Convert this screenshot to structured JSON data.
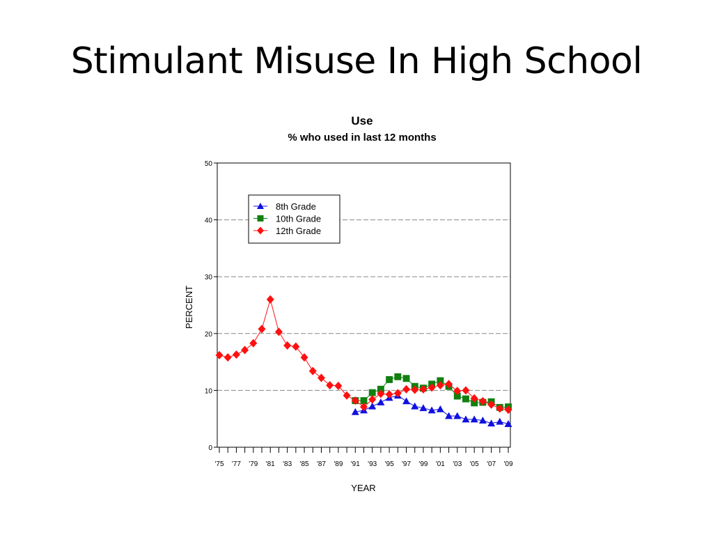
{
  "slide": {
    "title": "Stimulant Misuse In High School"
  },
  "chart_data": {
    "type": "line",
    "title": "Use",
    "subtitle": "% who used in last 12 months",
    "xlabel": "YEAR",
    "ylabel": "PERCENT",
    "ylim": [
      0,
      50
    ],
    "yticks": [
      0,
      10,
      20,
      30,
      40,
      50
    ],
    "xlim": [
      1975,
      2009
    ],
    "x_tick_labels": [
      "'75",
      "'77",
      "'79",
      "'81",
      "'83",
      "'85",
      "'87",
      "'89",
      "'91",
      "'93",
      "'95",
      "'97",
      "'99",
      "'01",
      "'03",
      "'05",
      "'07",
      "'09"
    ],
    "grid": "horizontal dashed",
    "legend_position": "top-left",
    "series": [
      {
        "name": "8th Grade",
        "color": "#1010e0",
        "marker": "triangle",
        "x": [
          1991,
          1992,
          1993,
          1994,
          1995,
          1996,
          1997,
          1998,
          1999,
          2000,
          2001,
          2002,
          2003,
          2004,
          2005,
          2006,
          2007,
          2008,
          2009
        ],
        "values": [
          6.2,
          6.5,
          7.2,
          7.9,
          8.7,
          9.1,
          8.1,
          7.2,
          6.9,
          6.5,
          6.7,
          5.5,
          5.5,
          4.9,
          4.9,
          4.7,
          4.2,
          4.5,
          4.1
        ]
      },
      {
        "name": "10th Grade",
        "color": "#108010",
        "marker": "square",
        "x": [
          1991,
          1992,
          1993,
          1994,
          1995,
          1996,
          1997,
          1998,
          1999,
          2000,
          2001,
          2002,
          2003,
          2004,
          2005,
          2006,
          2007,
          2008,
          2009
        ],
        "values": [
          8.2,
          8.2,
          9.6,
          10.2,
          11.9,
          12.4,
          12.1,
          10.7,
          10.4,
          11.1,
          11.7,
          10.7,
          9.0,
          8.5,
          7.8,
          7.9,
          8.0,
          7.0,
          7.1
        ]
      },
      {
        "name": "12th Grade",
        "color": "#ff1010",
        "marker": "diamond",
        "x": [
          1975,
          1976,
          1977,
          1978,
          1979,
          1980,
          1981,
          1982,
          1983,
          1984,
          1985,
          1986,
          1987,
          1988,
          1989,
          1990,
          1991,
          1992,
          1993,
          1994,
          1995,
          1996,
          1997,
          1998,
          1999,
          2000,
          2001,
          2002,
          2003,
          2004,
          2005,
          2006,
          2007,
          2008,
          2009
        ],
        "values": [
          16.2,
          15.8,
          16.3,
          17.1,
          18.3,
          20.8,
          26.0,
          20.3,
          17.9,
          17.7,
          15.8,
          13.4,
          12.2,
          10.9,
          10.8,
          9.1,
          8.2,
          7.1,
          8.4,
          9.4,
          9.3,
          9.5,
          10.2,
          10.1,
          10.2,
          10.5,
          10.9,
          11.1,
          9.9,
          10.0,
          8.6,
          8.1,
          7.5,
          6.8,
          6.6
        ]
      }
    ]
  }
}
